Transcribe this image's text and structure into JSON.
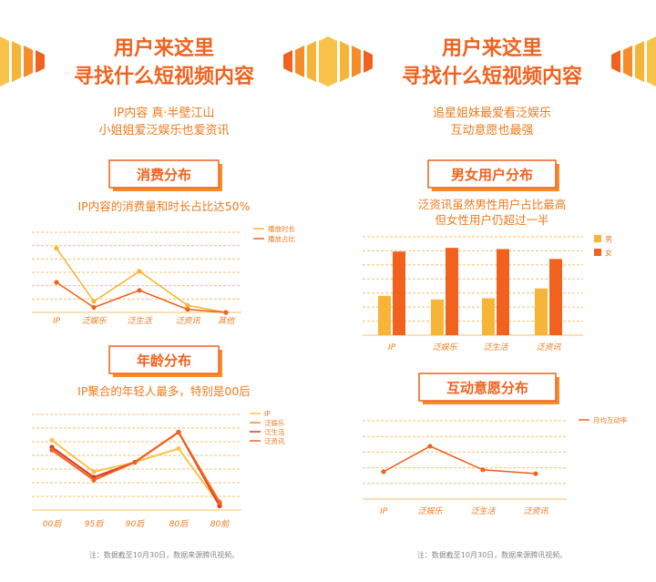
{
  "colors": {
    "orange_dark": "#f0621e",
    "orange_mid": "#f68b2a",
    "orange_light": "#f7b538",
    "yellow": "#f9c34a",
    "red": "#d9372a",
    "grid": "#f6c06a",
    "text_orange": "#ef7a1c",
    "note_gray": "#888888"
  },
  "left": {
    "header": {
      "line1": "用户来这里",
      "line2": "寻找什么短视频内容"
    },
    "subtitle": {
      "line1": "IP内容 真·半壁江山",
      "line2": "小姐姐爱泛娱乐也爱资讯"
    },
    "section1_title": "消费分布",
    "section1_caption": "IP内容的消费量和时长占比达50%",
    "section2_title": "年龄分布",
    "section2_caption": "IP聚合的年轻人最多，特别是00后",
    "note": "注：数据截至10月30日，数据来源腾讯视频。"
  },
  "right": {
    "header": {
      "line1": "用户来这里",
      "line2": "寻找什么短视频内容"
    },
    "subtitle": {
      "line1": "追星姐妹最爱看泛娱乐",
      "line2": "互动意愿也最强"
    },
    "section1_title": "男女用户分布",
    "section1_caption": {
      "line1": "泛资讯虽然男性用户占比最高",
      "line2": "但女性用户仍超过一半"
    },
    "section2_title": "互动意愿分布",
    "note": "注：数据截至10月30日，数据来源腾讯视频。"
  },
  "chart_data": [
    {
      "type": "line",
      "categories": [
        "IP",
        "泛娱乐",
        "泛生活",
        "泛资讯",
        "其他"
      ],
      "series": [
        {
          "name": "播放时长",
          "values": [
            64,
            11,
            41,
            7,
            0
          ]
        },
        {
          "name": "播放占比",
          "values": [
            30,
            5,
            22,
            3,
            0
          ]
        }
      ],
      "ylim": [
        0,
        80
      ],
      "grid": true,
      "legend": "top-right",
      "colors": [
        "#f7b538",
        "#f0621e"
      ]
    },
    {
      "type": "line",
      "categories": [
        "00后",
        "95后",
        "90后",
        "80后",
        "80前"
      ],
      "series": [
        {
          "name": "IP",
          "values": [
            51,
            28,
            35,
            45,
            4
          ]
        },
        {
          "name": "泛娱乐",
          "values": [
            44,
            22,
            35,
            57,
            6
          ]
        },
        {
          "name": "泛生活",
          "values": [
            46,
            24,
            35,
            57,
            3
          ]
        },
        {
          "name": "泛资讯",
          "values": [
            44,
            22,
            35,
            57,
            5
          ]
        }
      ],
      "ylim": [
        0,
        70
      ],
      "grid": true,
      "legend": "top-right",
      "colors": [
        "#f9c34a",
        "#f68b2a",
        "#d9372a",
        "#f0621e"
      ]
    },
    {
      "type": "bar",
      "categories": [
        "IP",
        "泛娱乐",
        "泛生活",
        "泛资讯"
      ],
      "series": [
        {
          "name": "男",
          "values": [
            32,
            29,
            30,
            38
          ]
        },
        {
          "name": "女",
          "values": [
            68,
            71,
            70,
            62
          ]
        }
      ],
      "ylim": [
        0,
        80
      ],
      "grid": true,
      "legend": "top-right",
      "colors": [
        "#f7b538",
        "#f0621e"
      ]
    },
    {
      "type": "line",
      "categories": [
        "IP",
        "泛娱乐",
        "泛生活",
        "泛资讯"
      ],
      "series": [
        {
          "name": "月均互动率",
          "values": [
            28,
            54,
            30,
            26
          ]
        }
      ],
      "ylim": [
        0,
        80
      ],
      "grid": true,
      "legend": "top-right",
      "colors": [
        "#f0621e"
      ]
    }
  ]
}
